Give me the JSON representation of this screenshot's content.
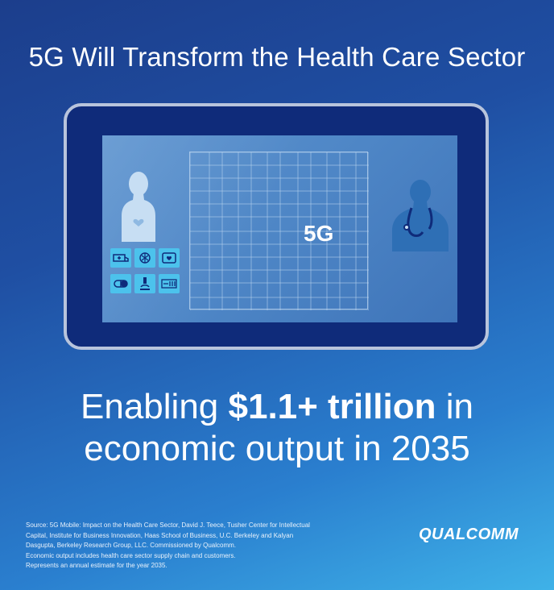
{
  "title": "5G Will Transform the Health Care Sector",
  "screen": {
    "label": "5G"
  },
  "headline": {
    "line1_pre": "Enabling ",
    "line1_bold": "$1.1+ trillion",
    "line1_post": " in",
    "line2": "economic output in 2035"
  },
  "footnote": {
    "lines": [
      "Source: 5G Mobile: Impact on the Health Care Sector, David J. Teece, Tusher Center for Intellectual",
      "Capital, Institute for Business Innovation, Haas School of Business, U.C. Berkeley and Kalyan",
      "Dasgupta, Berkeley Research Group, LLC. Commissioned by Qualcomm.",
      "Economic output includes health care sector supply chain and customers.",
      "Represents an annual estimate for the year 2035."
    ]
  },
  "logo": {
    "text": "QUALCOMM"
  },
  "icons": [
    "ambulance-icon",
    "brain-icon",
    "heart-monitor-icon",
    "pill-icon",
    "microscope-icon",
    "dna-sequence-icon"
  ],
  "colors": {
    "background_top": "#1c3e8c",
    "background_bottom": "#3fb2e8",
    "tablet_frame": "#b8c4dc",
    "tablet_bezel": "#0f2b7a",
    "icon_tile": "#4cc2ec"
  }
}
